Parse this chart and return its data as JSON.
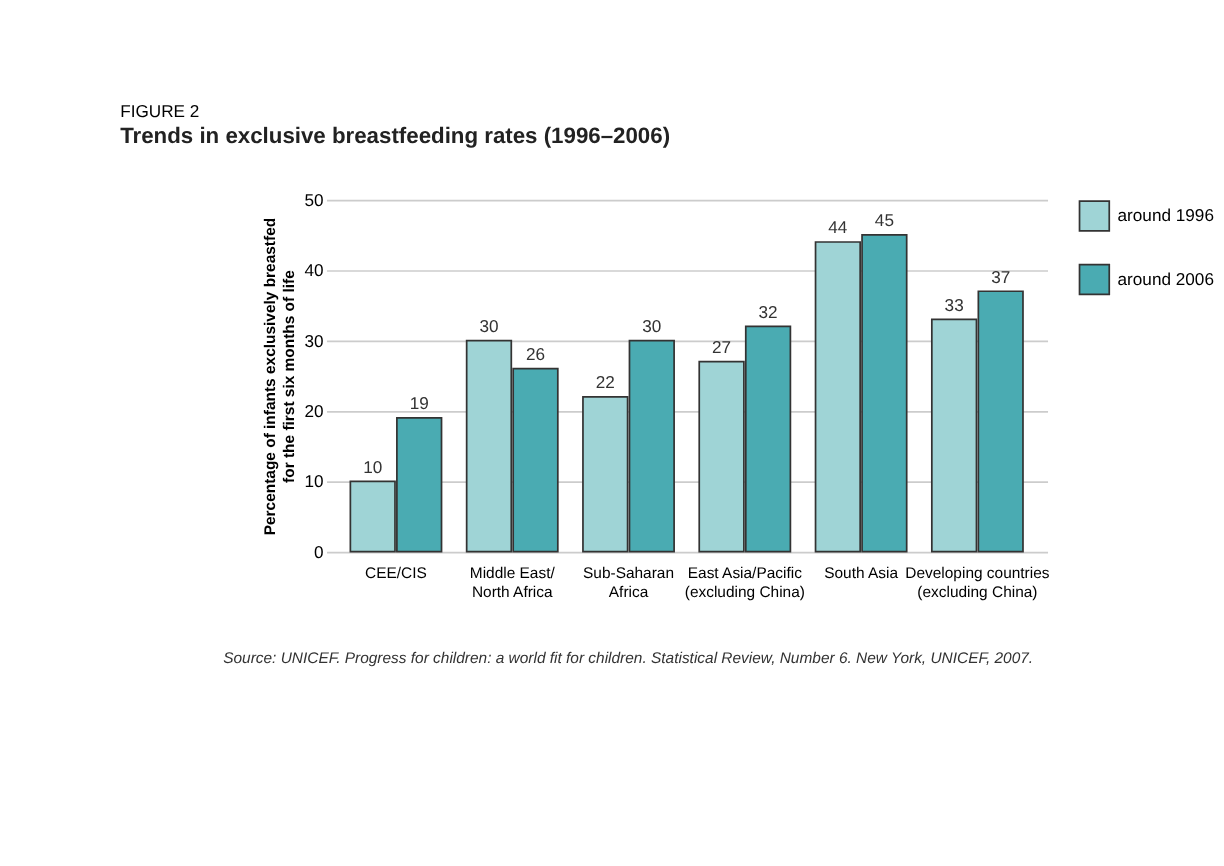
{
  "chart_data": {
    "type": "bar",
    "subtitle": "FIGURE 2",
    "title": "Trends in exclusive breastfeeding rates (1996–2006)",
    "ylabel": "Percentage of infants exclusively breastfed\nfor the first six months of life",
    "categories": [
      "CEE/CIS",
      "Middle East/\nNorth Africa",
      "Sub-Saharan\nAfrica",
      "East Asia/Pacific\n(excluding China)",
      "South Asia",
      "Developing countries\n(excluding China)"
    ],
    "series": [
      {
        "name": "around 1996",
        "color": "#9fd4d6",
        "values": [
          10,
          30,
          22,
          27,
          44,
          33
        ]
      },
      {
        "name": "around 2006",
        "color": "#4aabb2",
        "values": [
          19,
          26,
          30,
          32,
          45,
          37
        ]
      }
    ],
    "ylim": [
      0,
      50
    ],
    "yticks": [
      0,
      10,
      20,
      30,
      40,
      50
    ],
    "grid": "y",
    "legend": "top right",
    "data_labels": true,
    "annotations": [
      "Source: UNICEF. Progress for children: a world fit for children. Statistical Review, Number 6. New York, UNICEF, 2007."
    ]
  }
}
